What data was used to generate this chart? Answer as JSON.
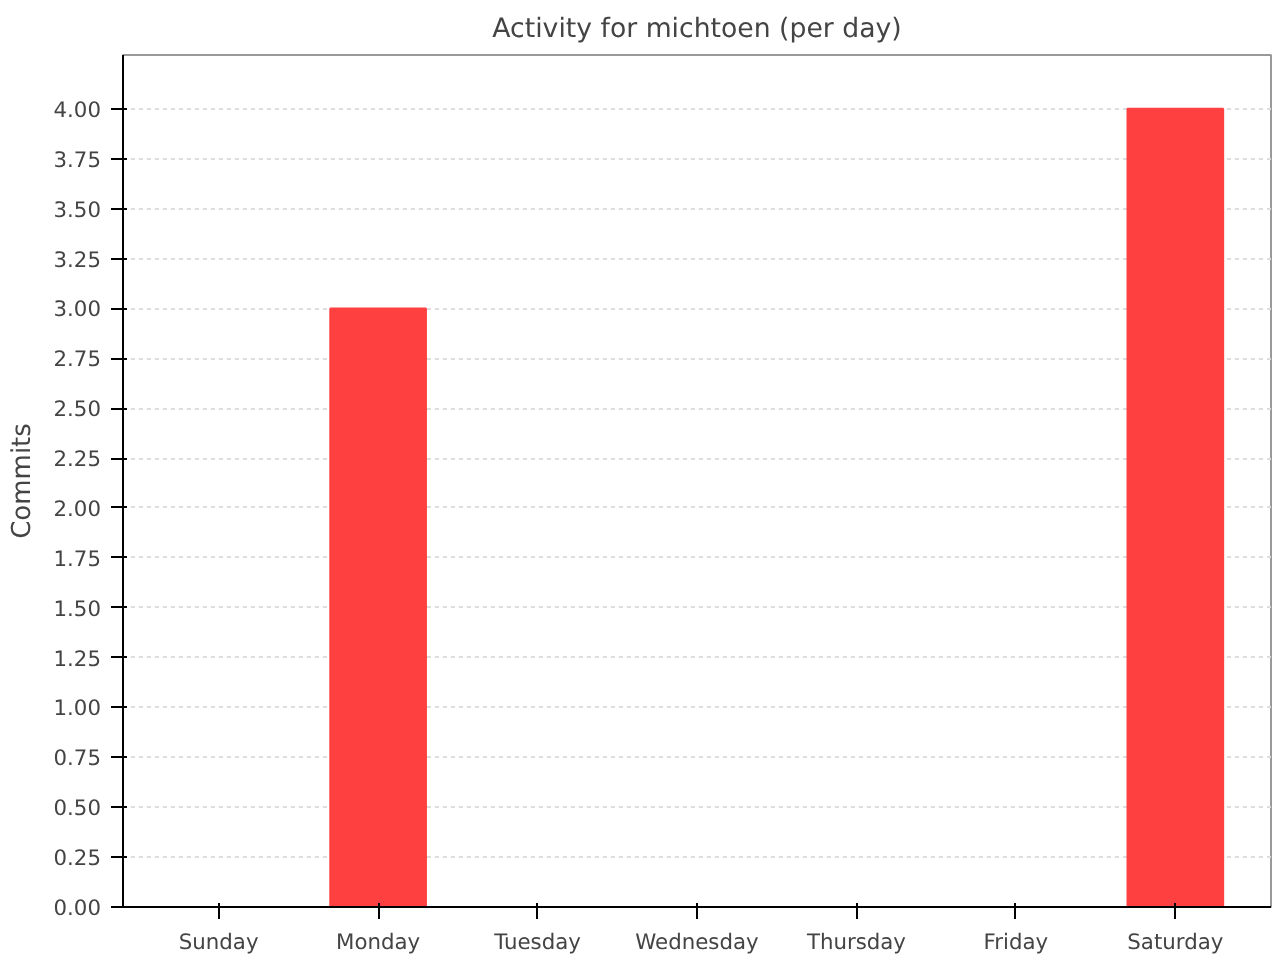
{
  "chart_data": {
    "type": "bar",
    "title": "Activity for michtoen (per day)",
    "ylabel": "Commits",
    "categories": [
      "Sunday",
      "Monday",
      "Tuesday",
      "Wednesday",
      "Thursday",
      "Friday",
      "Saturday"
    ],
    "values": [
      0,
      3,
      0,
      0,
      0,
      0,
      4
    ],
    "color": "#ff4040",
    "ylim": [
      0,
      4.27
    ],
    "yticks": [
      {
        "value": 0,
        "label": "0.00"
      },
      {
        "value": 0.25,
        "label": "0.25"
      },
      {
        "value": 0.5,
        "label": "0.50"
      },
      {
        "value": 0.75,
        "label": "0.75"
      },
      {
        "value": 1,
        "label": "1.00"
      },
      {
        "value": 1.25,
        "label": "1.25"
      },
      {
        "value": 1.5,
        "label": "1.50"
      },
      {
        "value": 1.75,
        "label": "1.75"
      },
      {
        "value": 2,
        "label": "2.00"
      },
      {
        "value": 2.25,
        "label": "2.25"
      },
      {
        "value": 2.5,
        "label": "2.50"
      },
      {
        "value": 2.75,
        "label": "2.75"
      },
      {
        "value": 3,
        "label": "3.00"
      },
      {
        "value": 3.25,
        "label": "3.25"
      },
      {
        "value": 3.5,
        "label": "3.50"
      },
      {
        "value": 3.75,
        "label": "3.75"
      },
      {
        "value": 4,
        "label": "4.00"
      }
    ],
    "grid": "y"
  }
}
